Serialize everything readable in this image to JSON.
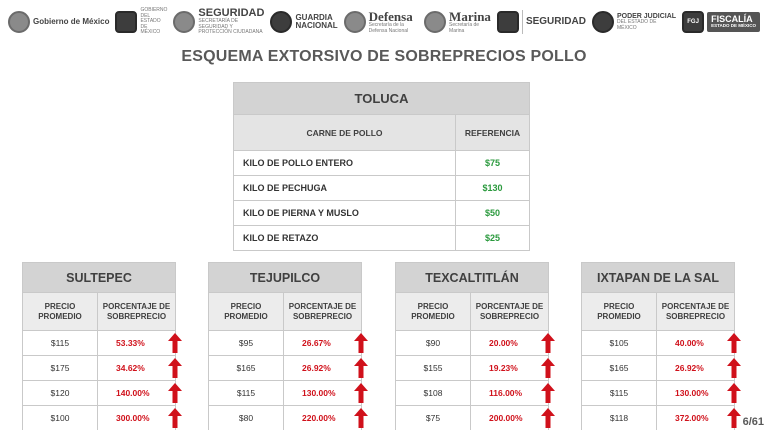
{
  "logos": {
    "gob_mexico": "Gobierno de México",
    "estado_mexico": "GOBIERNO DEL ESTADO DE MÉXICO",
    "seguridad_federal": "SEGURIDAD",
    "seguridad_federal_sub": "SECRETARÍA DE SEGURIDAD Y PROTECCIÓN CIUDADANA",
    "guardia_line1": "GUARDIA",
    "guardia_line2": "NACIONAL",
    "defensa": "Defensa",
    "defensa_sub": "Secretaría de la Defensa Nacional",
    "marina": "Marina",
    "marina_sub": "Secretaría de Marina",
    "seguridad_estatal": "SEGURIDAD",
    "poder_line1": "PODER JUDICIAL",
    "poder_line2": "DEL ESTADO DE MÉXICO",
    "fgj": "FGJ",
    "fiscalia_line1": "FISCALÍA",
    "fiscalia_line2": "ESTADO DE MÉXICO"
  },
  "title": "ESQUEMA EXTORSIVO DE SOBREPRECIOS POLLO",
  "toluca": {
    "caption": "TOLUCA",
    "col_product": "CARNE DE POLLO",
    "col_ref": "REFERENCIA",
    "rows": [
      {
        "label": "KILO DE POLLO ENTERO",
        "value": "$75"
      },
      {
        "label": "KILO DE PECHUGA",
        "value": "$130"
      },
      {
        "label": "KILO DE PIERNA Y MUSLO",
        "value": "$50"
      },
      {
        "label": "KILO DE RETAZO",
        "value": "$25"
      }
    ]
  },
  "municipios": [
    {
      "name": "SULTEPEC",
      "col1": "PRECIO PROMEDIO",
      "col2": "PORCENTAJE DE SOBREPRECIO",
      "rows": [
        {
          "price": "$115",
          "pct": "53.33%"
        },
        {
          "price": "$175",
          "pct": "34.62%"
        },
        {
          "price": "$120",
          "pct": "140.00%"
        },
        {
          "price": "$100",
          "pct": "300.00%"
        }
      ]
    },
    {
      "name": "TEJUPILCO",
      "col1": "PRECIO PROMEDIO",
      "col2": "PORCENTAJE DE SOBREPRECIO",
      "rows": [
        {
          "price": "$95",
          "pct": "26.67%"
        },
        {
          "price": "$165",
          "pct": "26.92%"
        },
        {
          "price": "$115",
          "pct": "130.00%"
        },
        {
          "price": "$80",
          "pct": "220.00%"
        }
      ]
    },
    {
      "name": "TEXCALTITLÁN",
      "col1": "PRECIO PROMEDIO",
      "col2": "PORCENTAJE DE SOBREPRECIO",
      "rows": [
        {
          "price": "$90",
          "pct": "20.00%"
        },
        {
          "price": "$155",
          "pct": "19.23%"
        },
        {
          "price": "$108",
          "pct": "116.00%"
        },
        {
          "price": "$75",
          "pct": "200.00%"
        }
      ]
    },
    {
      "name": "IXTAPAN DE LA SAL",
      "col1": "PRECIO PROMEDIO",
      "col2": "PORCENTAJE DE SOBREPRECIO",
      "rows": [
        {
          "price": "$105",
          "pct": "40.00%"
        },
        {
          "price": "$165",
          "pct": "26.92%"
        },
        {
          "price": "$115",
          "pct": "130.00%"
        },
        {
          "price": "$118",
          "pct": "372.00%"
        }
      ]
    }
  ],
  "page_number": "6/61",
  "colors": {
    "reference_green": "#2b9a3e",
    "increase_red": "#d0111b",
    "header_gray": "#d3d3d3"
  },
  "icons": {
    "increase": "arrow-up-icon"
  }
}
